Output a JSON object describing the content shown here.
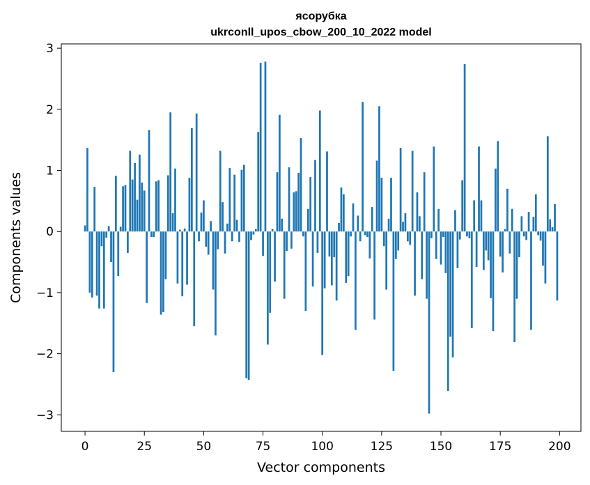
{
  "chart_data": {
    "type": "bar",
    "title_line1": "ясорубка",
    "title_line2": "ukrconll_upos_cbow_200_10_2022 model",
    "xlabel": "Vector components",
    "ylabel": "Components values",
    "xlim": [
      -10,
      209
    ],
    "ylim": [
      -3.27,
      3.07
    ],
    "xticks": [
      0,
      25,
      50,
      75,
      100,
      125,
      150,
      175,
      200
    ],
    "xtick_labels": [
      "0",
      "25",
      "50",
      "75",
      "100",
      "125",
      "150",
      "175",
      "200"
    ],
    "yticks": [
      -3,
      -2,
      -1,
      0,
      1,
      2,
      3
    ],
    "ytick_labels": [
      "−3",
      "−2",
      "−1",
      "0",
      "1",
      "2",
      "3"
    ],
    "bar_color": "#1f77b4",
    "values": [
      0.1,
      1.37,
      -1.0,
      -1.08,
      0.73,
      -1.05,
      -1.26,
      -0.24,
      -1.26,
      -0.1,
      0.09,
      -0.5,
      -2.3,
      0.91,
      -0.73,
      0.08,
      0.74,
      0.76,
      -0.35,
      1.32,
      0.85,
      1.12,
      0.52,
      1.26,
      0.8,
      0.67,
      -1.17,
      1.66,
      -0.09,
      -0.09,
      0.82,
      0.84,
      -1.36,
      -1.32,
      -0.78,
      0.92,
      1.95,
      0.3,
      1.03,
      -0.85,
      0.03,
      -1.06,
      0.05,
      -0.87,
      0.88,
      1.69,
      -1.55,
      1.93,
      -0.16,
      0.31,
      0.51,
      -0.25,
      -0.38,
      0.17,
      -0.95,
      -1.7,
      -0.29,
      1.32,
      0.48,
      -0.36,
      0.13,
      1.04,
      -0.16,
      0.93,
      0.19,
      -0.17,
      1.01,
      1.09,
      -2.4,
      -2.43,
      -0.14,
      -0.05,
      0.04,
      1.63,
      2.76,
      -0.4,
      2.78,
      -1.85,
      -1.33,
      0.04,
      -0.82,
      0.97,
      1.91,
      0.21,
      -1.1,
      -0.32,
      1.05,
      -0.28,
      0.64,
      0.66,
      0.96,
      1.53,
      -0.08,
      -1.3,
      0.37,
      0.89,
      -0.9,
      1.17,
      -0.35,
      1.98,
      -2.02,
      -0.93,
      1.31,
      -0.41,
      -0.88,
      -0.42,
      -1.13,
      0.14,
      0.72,
      0.61,
      -0.84,
      -0.73,
      -0.08,
      0.46,
      -1.61,
      0.26,
      -0.16,
      2.12,
      -0.06,
      -0.09,
      -0.44,
      0.4,
      -1.44,
      1.16,
      2.05,
      0.88,
      -0.24,
      -0.95,
      0.21,
      0.88,
      -2.28,
      -0.45,
      -0.31,
      1.37,
      0.16,
      0.3,
      -0.16,
      -0.22,
      1.32,
      -1.05,
      0.64,
      0.25,
      -0.78,
      0.97,
      -1.1,
      -2.98,
      -0.11,
      1.39,
      -0.45,
      0.37,
      -0.54,
      -0.09,
      -0.68,
      -2.61,
      -1.72,
      -2.06,
      0.35,
      -0.6,
      -0.13,
      0.84,
      2.74,
      -0.08,
      -0.11,
      -1.58,
      0.51,
      -0.58,
      1.39,
      0.51,
      -0.63,
      -0.31,
      -0.47,
      -1.09,
      -1.63,
      1.03,
      1.48,
      -0.41,
      -0.67,
      0.04,
      0.7,
      -0.36,
      0.37,
      -1.81,
      -1.1,
      -0.42,
      0.25,
      -0.08,
      -0.14,
      0.32,
      -1.61,
      0.24,
      0.61,
      -0.06,
      -0.15,
      -0.56,
      -0.85,
      1.56,
      0.2,
      0.07,
      0.45,
      -1.13
    ]
  }
}
